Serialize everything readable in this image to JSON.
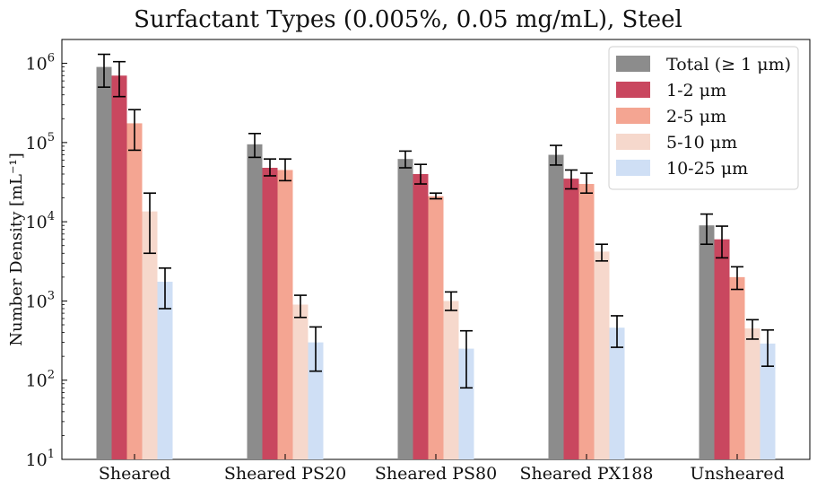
{
  "chart_data": {
    "type": "bar",
    "title": "Surfactant Types (0.005%, 0.05 mg/mL), Steel",
    "xlabel": "",
    "ylabel": "Number Density [mL⁻¹]",
    "yscale": "log",
    "ylim": [
      10,
      2000000
    ],
    "yticks": [
      {
        "value": 10,
        "base": "10",
        "exp": "1"
      },
      {
        "value": 100,
        "base": "10",
        "exp": "2"
      },
      {
        "value": 1000,
        "base": "10",
        "exp": "3"
      },
      {
        "value": 10000,
        "base": "10",
        "exp": "4"
      },
      {
        "value": 100000,
        "base": "10",
        "exp": "5"
      },
      {
        "value": 1000000,
        "base": "10",
        "exp": "6"
      }
    ],
    "categories": [
      "Sheared",
      "Sheared PS20",
      "Sheared PS80",
      "Sheared PX188",
      "Unsheared"
    ],
    "legend_position": "top-right",
    "series": [
      {
        "name": "Total (≥ 1 μm)",
        "color": "#8c8c8c",
        "values": [
          900000,
          95000,
          62000,
          70000,
          9000
        ],
        "err_low": [
          500000,
          65000,
          48000,
          52000,
          5200
        ],
        "err_high": [
          1300000,
          130000,
          78000,
          92000,
          12500
        ]
      },
      {
        "name": "1-2 μm",
        "color": "#c9475f",
        "values": [
          700000,
          48000,
          40000,
          35000,
          6000
        ],
        "err_low": [
          380000,
          38000,
          30000,
          26000,
          3500
        ],
        "err_high": [
          1050000,
          62000,
          53000,
          45000,
          8800
        ]
      },
      {
        "name": "2-5 μm",
        "color": "#f4a592",
        "values": [
          175000,
          45000,
          21000,
          30000,
          2000
        ],
        "err_low": [
          80000,
          33000,
          19500,
          23000,
          1400
        ],
        "err_high": [
          260000,
          62000,
          23000,
          41000,
          2700
        ]
      },
      {
        "name": "5-10 μm",
        "color": "#f6d8cc",
        "values": [
          13500,
          900,
          1000,
          4200,
          450
        ],
        "err_low": [
          4000,
          620,
          760,
          3200,
          330
        ],
        "err_high": [
          23000,
          1180,
          1300,
          5200,
          580
        ]
      },
      {
        "name": "10-25 μm",
        "color": "#cfdff5",
        "values": [
          1750,
          300,
          250,
          460,
          290
        ],
        "err_low": [
          800,
          130,
          80,
          260,
          150
        ],
        "err_high": [
          2600,
          470,
          420,
          650,
          430
        ]
      }
    ]
  }
}
